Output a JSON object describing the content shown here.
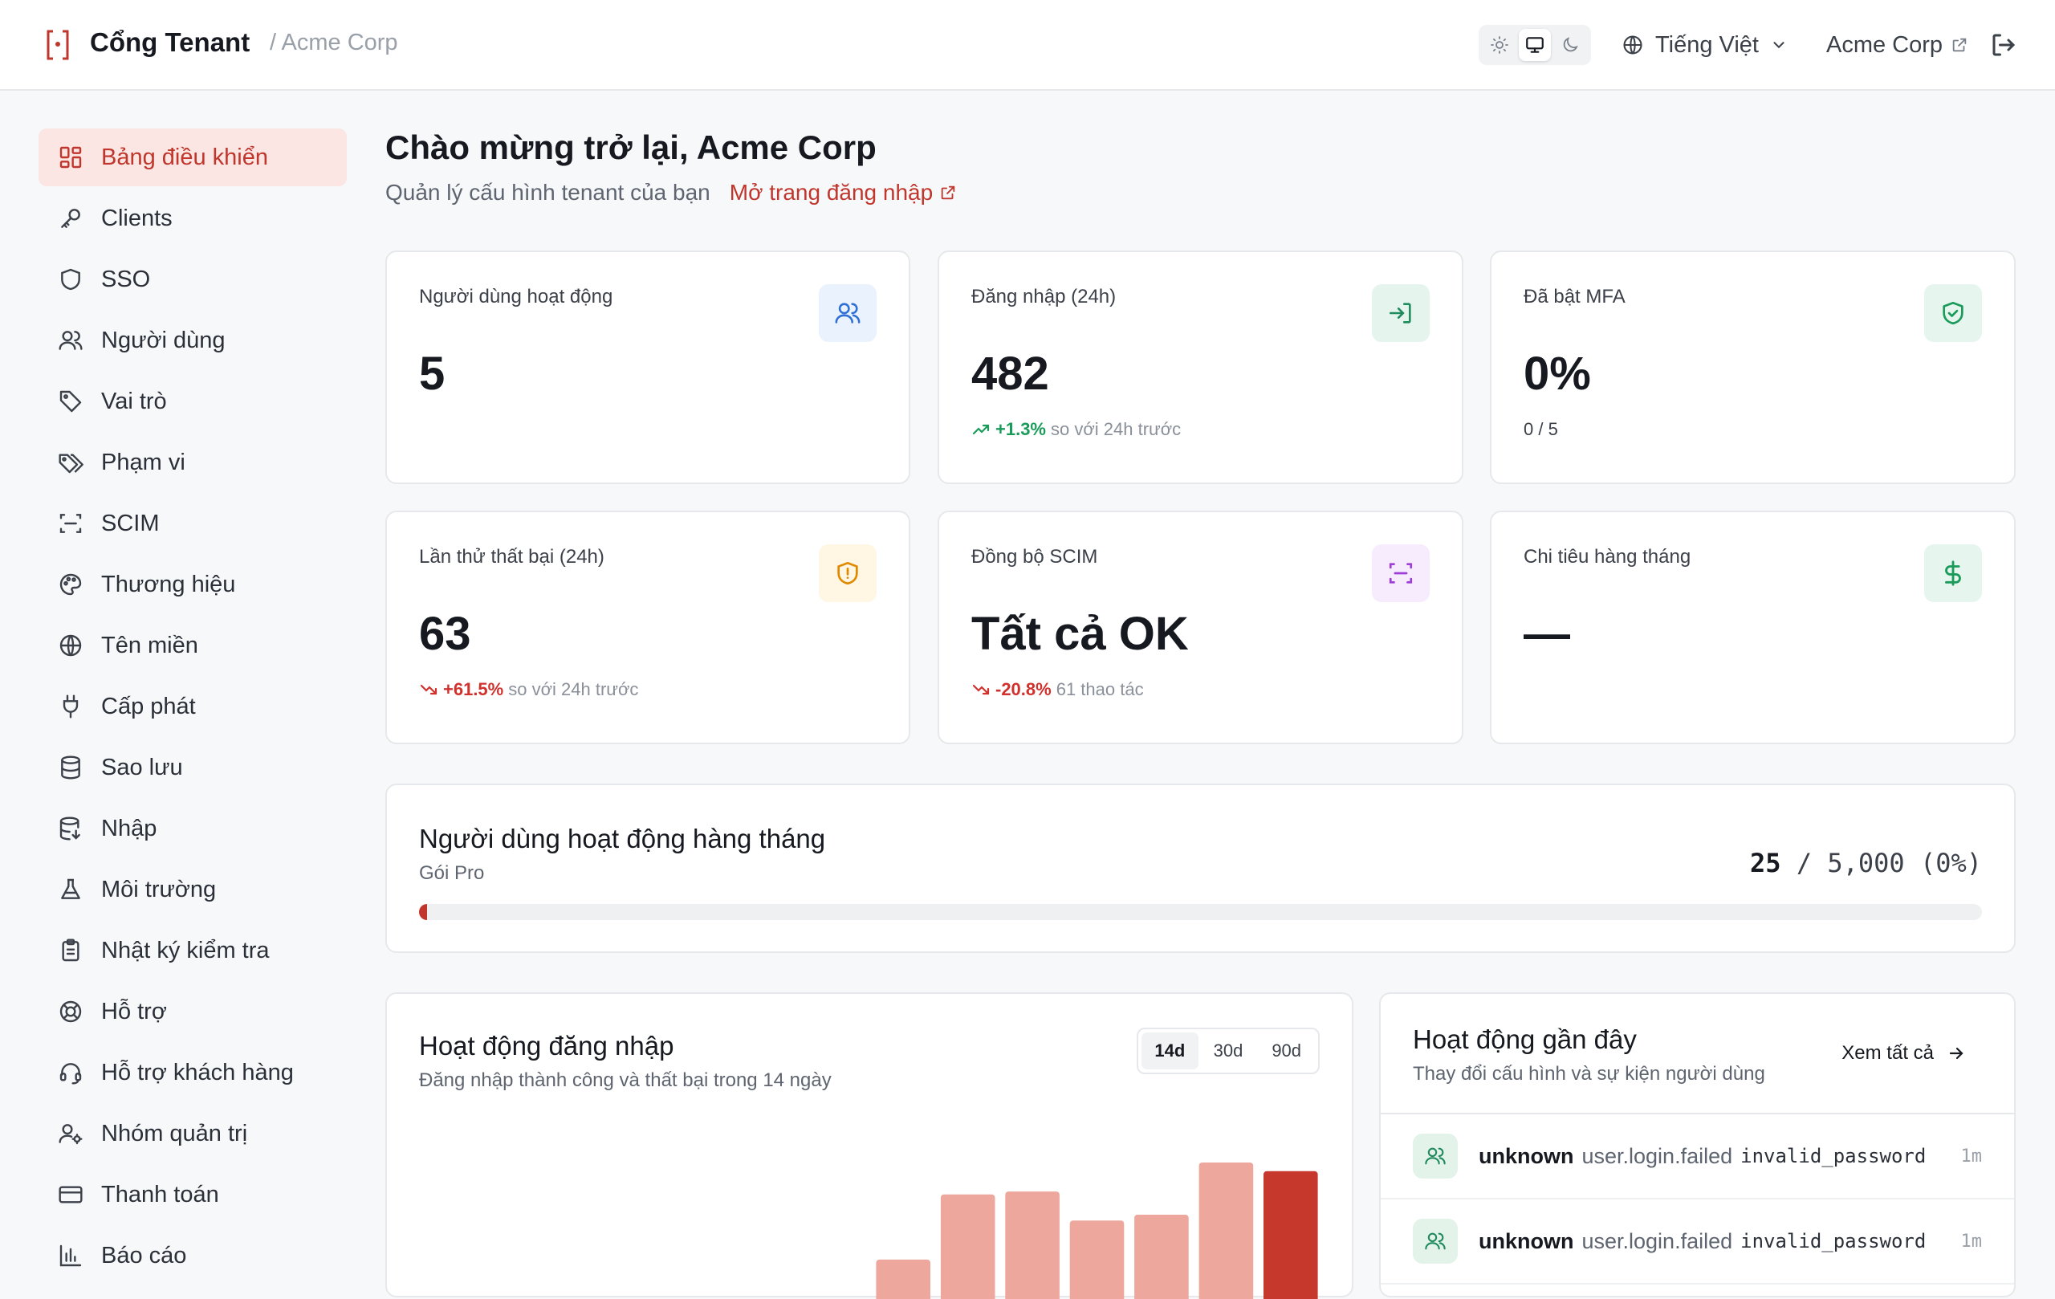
{
  "header": {
    "app_title": "Cổng Tenant",
    "breadcrumb": "/ Acme Corp",
    "language": "Tiếng Việt",
    "tenant_link": "Acme Corp",
    "theme_options": [
      "sun-icon",
      "monitor-icon",
      "moon-icon"
    ],
    "active_theme": "monitor"
  },
  "sidebar": {
    "items": [
      {
        "label": "Bảng điều khiển",
        "icon": "dashboard-icon",
        "active": true
      },
      {
        "label": "Clients",
        "icon": "key-icon"
      },
      {
        "label": "SSO",
        "icon": "shield-icon"
      },
      {
        "label": "Người dùng",
        "icon": "users-icon"
      },
      {
        "label": "Vai trò",
        "icon": "tag-icon"
      },
      {
        "label": "Phạm vi",
        "icon": "tags-icon"
      },
      {
        "label": "SCIM",
        "icon": "scan-icon"
      },
      {
        "label": "Thương hiệu",
        "icon": "palette-icon"
      },
      {
        "label": "Tên miền",
        "icon": "globe-icon"
      },
      {
        "label": "Cấp phát",
        "icon": "plug-icon"
      },
      {
        "label": "Sao lưu",
        "icon": "database-icon"
      },
      {
        "label": "Nhập",
        "icon": "database-import-icon"
      },
      {
        "label": "Môi trường",
        "icon": "flask-icon"
      },
      {
        "label": "Nhật ký kiểm tra",
        "icon": "clipboard-icon"
      },
      {
        "label": "Hỗ trợ",
        "icon": "lifebuoy-icon"
      },
      {
        "label": "Hỗ trợ khách hàng",
        "icon": "headset-icon"
      },
      {
        "label": "Nhóm quản trị",
        "icon": "user-cog-icon"
      },
      {
        "label": "Thanh toán",
        "icon": "credit-card-icon"
      },
      {
        "label": "Báo cáo",
        "icon": "bar-chart-icon"
      }
    ]
  },
  "main": {
    "welcome": "Chào mừng trở lại, Acme Corp",
    "subtitle": "Quản lý cấu hình tenant của bạn",
    "login_page_link": "Mở trang đăng nhập"
  },
  "stats": [
    {
      "label": "Người dùng hoạt động",
      "value": "5",
      "icon": "users-icon",
      "accent": "#2f6fd6",
      "bg": "#eaf2fd"
    },
    {
      "label": "Đăng nhập (24h)",
      "value": "482",
      "delta": "+1.3%",
      "delta_dir": "up",
      "delta_note": "so với 24h trước",
      "icon": "login-icon",
      "accent": "#1f8a5c",
      "bg": "#e6f4ee"
    },
    {
      "label": "Đã bật MFA",
      "value": "0%",
      "note": "0 / 5",
      "icon": "shield-check-icon",
      "accent": "#1a9b5a",
      "bg": "#e6f6ee"
    },
    {
      "label": "Lần thử thất bại (24h)",
      "value": "63",
      "delta": "+61.5%",
      "delta_dir": "down",
      "delta_note": "so với 24h trước",
      "icon": "shield-alert-icon",
      "accent": "#e08a00",
      "bg": "#fff6e3"
    },
    {
      "label": "Đồng bộ SCIM",
      "value": "Tất cả OK",
      "delta": "-20.8%",
      "delta_dir": "down",
      "delta_note": "61 thao tác",
      "icon": "scan-icon",
      "accent": "#9b3fd6",
      "bg": "#f6ecfd"
    },
    {
      "label": "Chi tiêu hàng tháng",
      "value": "—",
      "icon": "dollar-icon",
      "accent": "#1a9b5a",
      "bg": "#e6f6ee"
    }
  ],
  "mau": {
    "title": "Người dùng hoạt động hàng tháng",
    "plan": "Gói Pro",
    "used": "25",
    "limit_text": "/ 5,000 (0%)",
    "progress_fraction": 0.005
  },
  "login_activity": {
    "title": "Hoạt động đăng nhập",
    "subtitle": "Đăng nhập thành công và thất bại trong 14 ngày",
    "ranges": [
      "14d",
      "30d",
      "90d"
    ],
    "active_range": "14d"
  },
  "chart_data": {
    "type": "bar",
    "values": [
      0,
      0,
      0,
      0,
      0,
      0,
      0,
      66,
      111,
      113,
      93,
      97,
      133,
      127
    ],
    "highlight_last": true,
    "colors": {
      "bar": "#eea79c",
      "highlight": "#c6372c"
    }
  },
  "recent_activity": {
    "title": "Hoạt động gần đây",
    "subtitle": "Thay đổi cấu hình và sự kiện người dùng",
    "see_all": "Xem tất cả",
    "rows": [
      {
        "user": "unknown",
        "event": "user.login.failed",
        "reason": "invalid_password",
        "time": "1m"
      },
      {
        "user": "unknown",
        "event": "user.login.failed",
        "reason": "invalid_password",
        "time": "1m"
      }
    ]
  }
}
